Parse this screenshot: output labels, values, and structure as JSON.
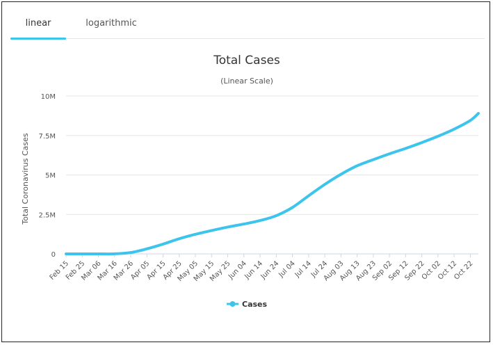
{
  "tabs": [
    {
      "label": "linear",
      "active": true
    },
    {
      "label": "logarithmic",
      "active": false
    }
  ],
  "colors": {
    "series": "#3cc4ec",
    "grid": "#e6e6e6",
    "axis": "#ccd6eb"
  },
  "chart_data": {
    "type": "line",
    "title": "Total Cases",
    "subtitle": "(Linear Scale)",
    "xlabel": "",
    "ylabel": "Total Coronavirus Cases",
    "ylim": [
      0,
      10000000
    ],
    "yticks": [
      {
        "value": 0,
        "label": "0"
      },
      {
        "value": 2500000,
        "label": "2.5M"
      },
      {
        "value": 5000000,
        "label": "5M"
      },
      {
        "value": 7500000,
        "label": "7.5M"
      },
      {
        "value": 10000000,
        "label": "10M"
      }
    ],
    "x_start": "Feb 15",
    "x_end": "Oct 27",
    "xtick_labels": [
      "Feb 15",
      "Feb 25",
      "Mar 06",
      "Mar 16",
      "Mar 26",
      "Apr 05",
      "Apr 15",
      "Apr 25",
      "May 05",
      "May 15",
      "May 25",
      "Jun 04",
      "Jun 14",
      "Jun 24",
      "Jul 04",
      "Jul 14",
      "Jul 24",
      "Aug 03",
      "Aug 13",
      "Aug 23",
      "Sep 02",
      "Sep 12",
      "Sep 22",
      "Oct 02",
      "Oct 12",
      "Oct 22"
    ],
    "series": [
      {
        "name": "Cases",
        "x_index_step_days": 10,
        "values": [
          15,
          15,
          150,
          3500,
          85000,
          320000,
          620000,
          960000,
          1240000,
          1480000,
          1700000,
          1890000,
          2110000,
          2420000,
          2940000,
          3680000,
          4400000,
          5040000,
          5580000,
          5970000,
          6340000,
          6680000,
          7050000,
          7450000,
          7900000,
          8450000,
          8900000
        ],
        "last_value_days_after_prev": 5
      }
    ],
    "legend": {
      "position": "bottom-center",
      "label": "Cases"
    }
  }
}
